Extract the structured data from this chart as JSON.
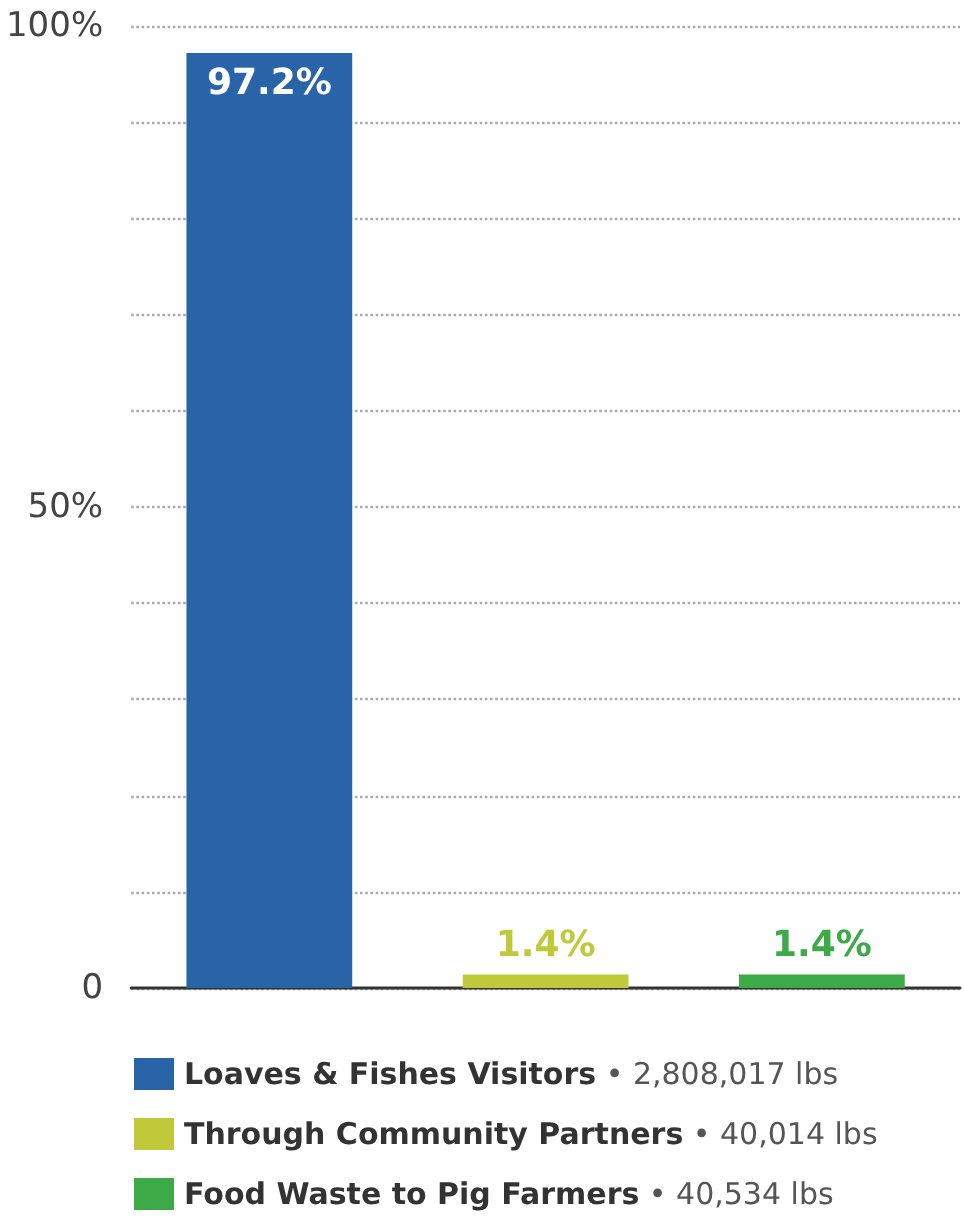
{
  "chart_data": {
    "type": "bar",
    "categories": [
      null,
      null,
      null
    ],
    "series": [
      {
        "name": "Loaves & Fishes Visitors • 2,808,017 lbs",
        "color": "#2a64a8",
        "values": [
          97.2,
          null,
          null
        ],
        "value_labels": [
          "97.2%",
          null,
          null
        ]
      },
      {
        "name": "Through Community Partners • 40,014 lbs",
        "color": "#bfc93a",
        "values": [
          null,
          1.4,
          null
        ],
        "value_labels": [
          null,
          "1.4%",
          null
        ]
      },
      {
        "name": "Food Waste to Pig Farmers • 40,534 lbs",
        "color": "#3daa48",
        "values": [
          null,
          null,
          1.4
        ],
        "value_labels": [
          null,
          null,
          "1.4%"
        ]
      }
    ],
    "ylim": [
      0,
      100
    ],
    "yticks": [
      {
        "value": 0,
        "label": "0"
      },
      {
        "value": 10,
        "label": null
      },
      {
        "value": 20,
        "label": null
      },
      {
        "value": 30,
        "label": null
      },
      {
        "value": 40,
        "label": null
      },
      {
        "value": 50,
        "label": "50%"
      },
      {
        "value": 60,
        "label": null
      },
      {
        "value": 70,
        "label": null
      },
      {
        "value": 80,
        "label": null
      },
      {
        "value": 90,
        "label": null
      },
      {
        "value": 100,
        "label": "100%"
      }
    ],
    "grid": "y",
    "tick_labels": "y",
    "legend": "bottom"
  }
}
